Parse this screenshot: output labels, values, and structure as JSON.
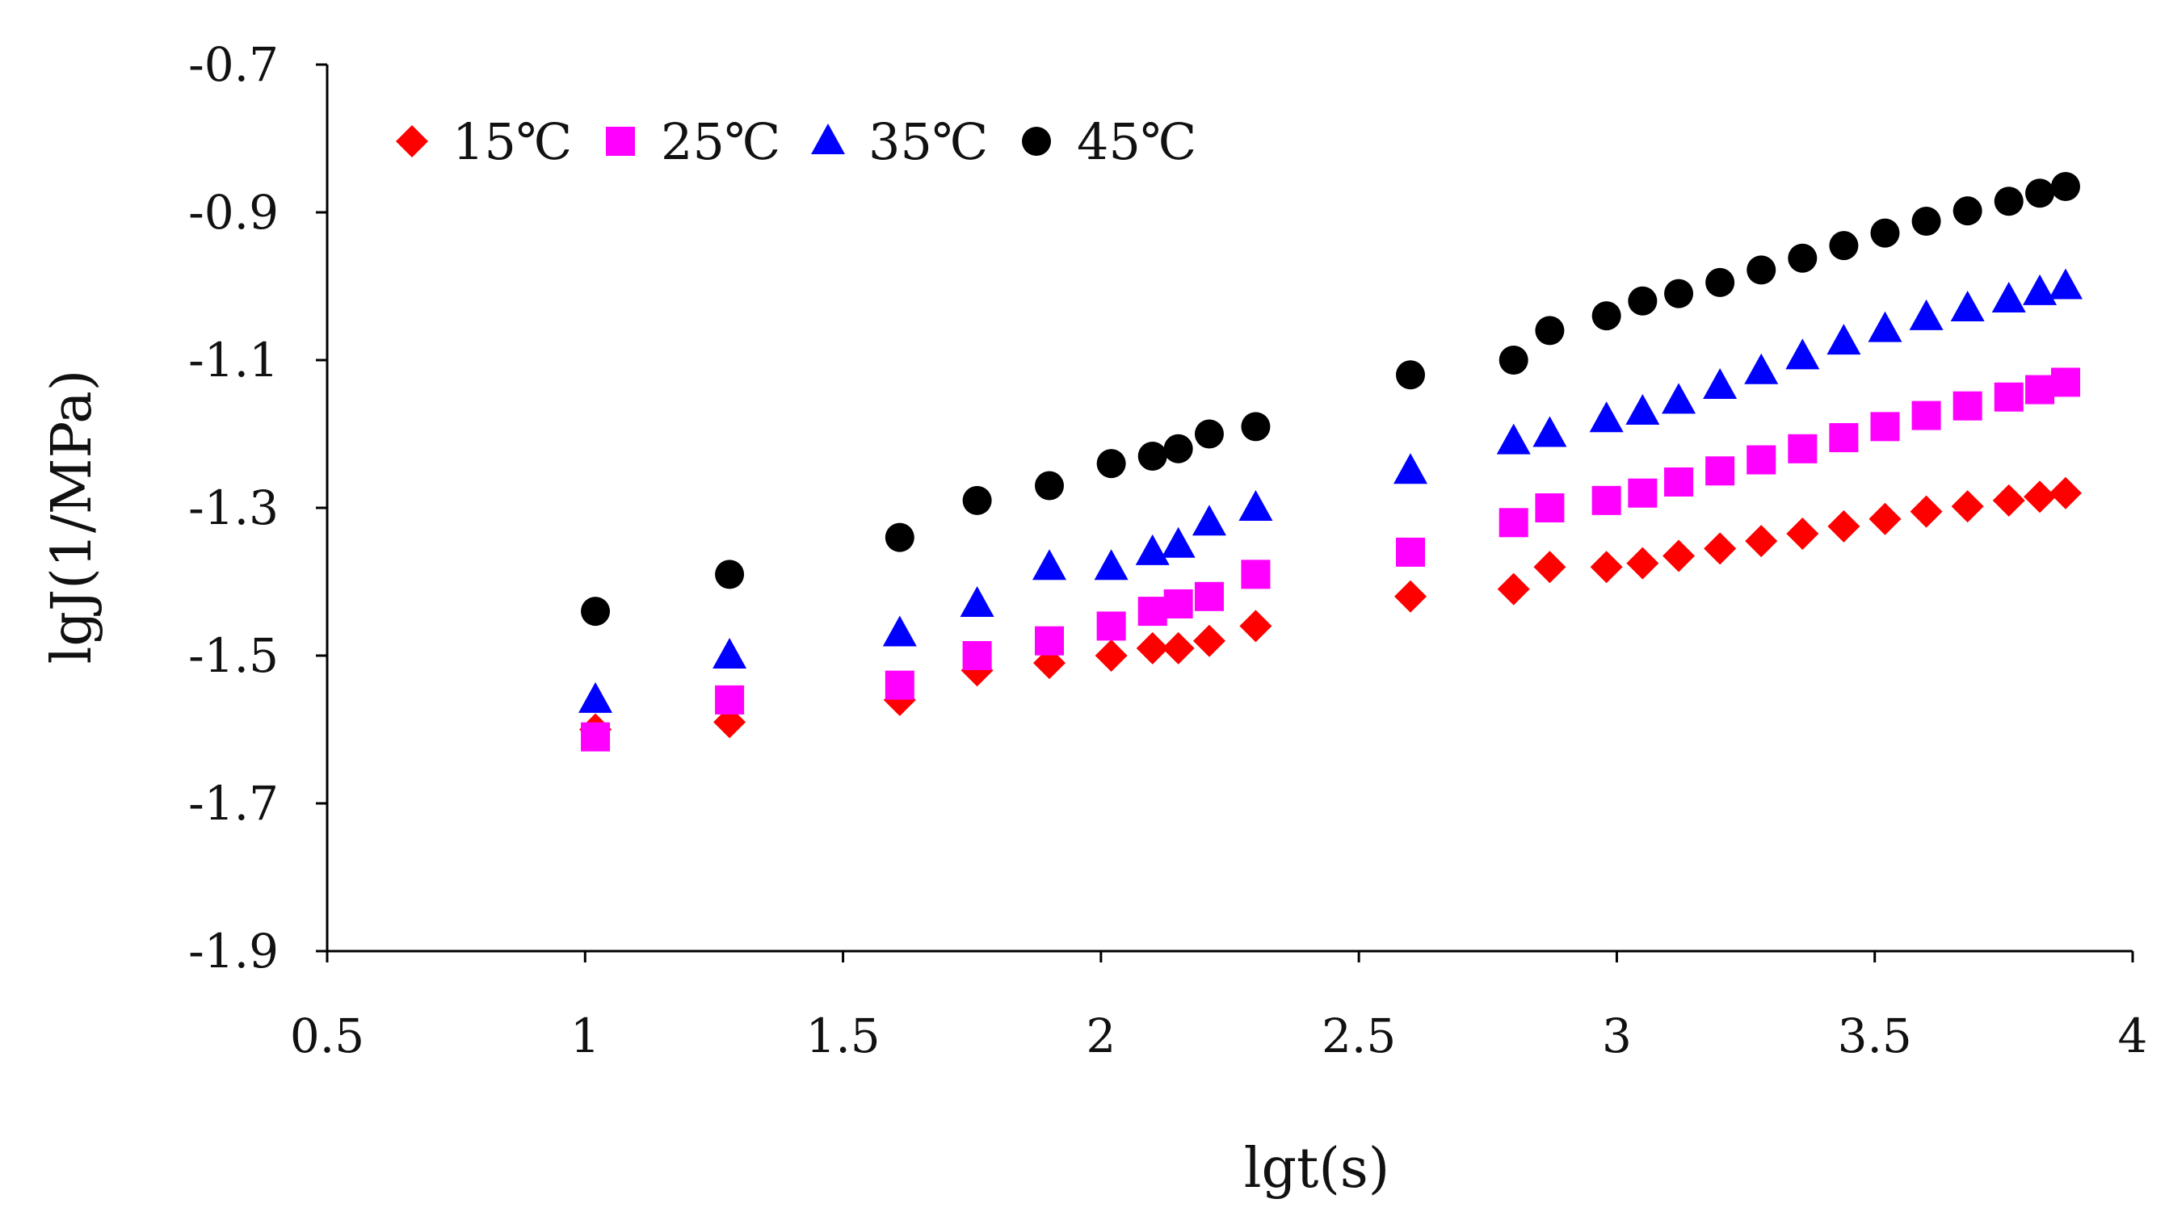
{
  "chart_data": {
    "type": "scatter",
    "title": "",
    "xlabel": "lgt(s)",
    "ylabel": "lgJ(1/MPa)",
    "xlim": [
      0.5,
      4
    ],
    "ylim": [
      -1.9,
      -0.7
    ],
    "xticks": [
      0.5,
      1,
      1.5,
      2,
      2.5,
      3,
      3.5,
      4
    ],
    "xtick_labels": [
      "0.5",
      "1",
      "1.5",
      "2",
      "2.5",
      "3",
      "3.5",
      "4"
    ],
    "yticks": [
      -0.7,
      -0.9,
      -1.1,
      -1.3,
      -1.5,
      -1.7,
      -1.9
    ],
    "ytick_labels": [
      "-0.7",
      "-0.9",
      "-1.1",
      "-1.3",
      "-1.5",
      "-1.7",
      "-1.9"
    ],
    "grid": false,
    "legend_position": "top-left",
    "legend_labels": [
      "15℃",
      "25℃",
      "35℃",
      "45℃"
    ],
    "series": [
      {
        "name": "15℃",
        "marker": "diamond",
        "color": "#ff0000",
        "x": [
          1.02,
          1.28,
          1.61,
          1.76,
          1.9,
          2.02,
          2.1,
          2.15,
          2.21,
          2.3,
          2.6,
          2.8,
          2.87,
          2.98,
          3.05,
          3.12,
          3.2,
          3.28,
          3.36,
          3.44,
          3.52,
          3.6,
          3.68,
          3.76,
          3.82,
          3.87
        ],
        "y": [
          -1.6,
          -1.59,
          -1.56,
          -1.52,
          -1.51,
          -1.5,
          -1.49,
          -1.49,
          -1.48,
          -1.46,
          -1.42,
          -1.41,
          -1.38,
          -1.38,
          -1.375,
          -1.365,
          -1.355,
          -1.345,
          -1.335,
          -1.325,
          -1.315,
          -1.305,
          -1.298,
          -1.29,
          -1.285,
          -1.28
        ]
      },
      {
        "name": "25℃",
        "marker": "square",
        "color": "#ff00ff",
        "x": [
          1.02,
          1.28,
          1.61,
          1.76,
          1.9,
          2.02,
          2.1,
          2.15,
          2.21,
          2.3,
          2.6,
          2.8,
          2.87,
          2.98,
          3.05,
          3.12,
          3.2,
          3.28,
          3.36,
          3.44,
          3.52,
          3.6,
          3.68,
          3.76,
          3.82,
          3.87
        ],
        "y": [
          -1.61,
          -1.56,
          -1.54,
          -1.5,
          -1.48,
          -1.46,
          -1.44,
          -1.43,
          -1.42,
          -1.39,
          -1.36,
          -1.32,
          -1.3,
          -1.29,
          -1.28,
          -1.265,
          -1.25,
          -1.235,
          -1.22,
          -1.205,
          -1.19,
          -1.175,
          -1.162,
          -1.15,
          -1.14,
          -1.13
        ]
      },
      {
        "name": "35℃",
        "marker": "triangle",
        "color": "#0000ff",
        "x": [
          1.02,
          1.28,
          1.61,
          1.76,
          1.9,
          2.02,
          2.1,
          2.15,
          2.21,
          2.3,
          2.6,
          2.8,
          2.87,
          2.98,
          3.05,
          3.12,
          3.2,
          3.28,
          3.36,
          3.44,
          3.52,
          3.6,
          3.68,
          3.76,
          3.82,
          3.87
        ],
        "y": [
          -1.56,
          -1.5,
          -1.47,
          -1.43,
          -1.38,
          -1.38,
          -1.36,
          -1.35,
          -1.32,
          -1.3,
          -1.25,
          -1.21,
          -1.2,
          -1.18,
          -1.17,
          -1.155,
          -1.135,
          -1.115,
          -1.095,
          -1.075,
          -1.058,
          -1.042,
          -1.03,
          -1.018,
          -1.008,
          -1.0
        ]
      },
      {
        "name": "45℃",
        "marker": "circle",
        "color": "#000000",
        "x": [
          1.02,
          1.28,
          1.61,
          1.76,
          1.9,
          2.02,
          2.1,
          2.15,
          2.21,
          2.3,
          2.6,
          2.8,
          2.87,
          2.98,
          3.05,
          3.12,
          3.2,
          3.28,
          3.36,
          3.44,
          3.52,
          3.6,
          3.68,
          3.76,
          3.82,
          3.87
        ],
        "y": [
          -1.44,
          -1.39,
          -1.34,
          -1.29,
          -1.27,
          -1.24,
          -1.23,
          -1.22,
          -1.2,
          -1.19,
          -1.12,
          -1.1,
          -1.06,
          -1.04,
          -1.02,
          -1.01,
          -0.995,
          -0.978,
          -0.962,
          -0.945,
          -0.928,
          -0.912,
          -0.898,
          -0.885,
          -0.874,
          -0.865
        ]
      }
    ]
  }
}
